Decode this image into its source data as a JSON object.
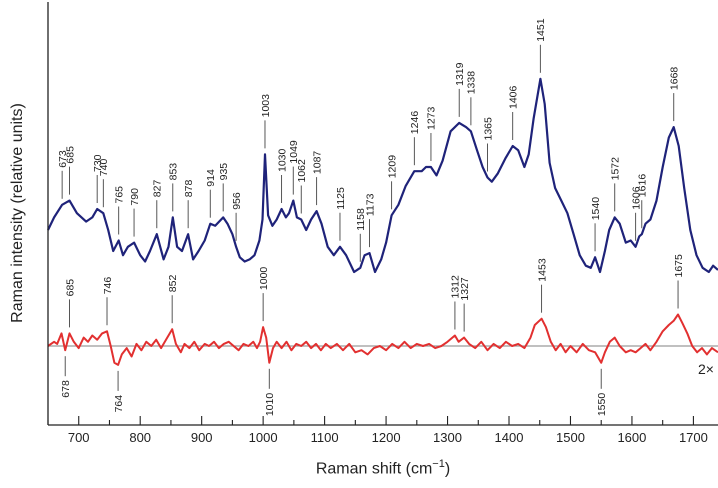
{
  "chart_data": {
    "type": "line",
    "title": "",
    "xlabel_main": "Raman shift (cm",
    "xlabel_sup": "−1",
    "xlabel_close": ")",
    "ylabel": "Raman intensity (relative units)",
    "xlim": [
      650,
      1740
    ],
    "xticks": [
      700,
      800,
      900,
      1000,
      1100,
      1200,
      1300,
      1400,
      1500,
      1600,
      1700
    ],
    "scale_annotation": "2×",
    "colors": {
      "upper": "#1f237a",
      "lower": "#e23030",
      "baseline": "#9a9a9a",
      "axis": "#222222",
      "leader": "#444444"
    },
    "series": [
      {
        "id": "upper",
        "points": [
          [
            650,
            0.0
          ],
          [
            660,
            0.06
          ],
          [
            673,
            0.12
          ],
          [
            685,
            0.14
          ],
          [
            697,
            0.08
          ],
          [
            712,
            0.04
          ],
          [
            722,
            0.06
          ],
          [
            730,
            0.1
          ],
          [
            740,
            0.08
          ],
          [
            748,
            0.0
          ],
          [
            756,
            -0.1
          ],
          [
            765,
            -0.05
          ],
          [
            772,
            -0.12
          ],
          [
            780,
            -0.08
          ],
          [
            790,
            -0.06
          ],
          [
            800,
            -0.12
          ],
          [
            808,
            -0.15
          ],
          [
            816,
            -0.1
          ],
          [
            827,
            -0.02
          ],
          [
            838,
            -0.14
          ],
          [
            846,
            -0.08
          ],
          [
            853,
            0.06
          ],
          [
            860,
            -0.08
          ],
          [
            868,
            -0.1
          ],
          [
            878,
            -0.02
          ],
          [
            886,
            -0.14
          ],
          [
            895,
            -0.1
          ],
          [
            905,
            -0.05
          ],
          [
            914,
            0.03
          ],
          [
            922,
            0.02
          ],
          [
            935,
            0.06
          ],
          [
            942,
            0.03
          ],
          [
            950,
            -0.02
          ],
          [
            956,
            -0.08
          ],
          [
            962,
            -0.13
          ],
          [
            970,
            -0.15
          ],
          [
            978,
            -0.14
          ],
          [
            986,
            -0.12
          ],
          [
            994,
            -0.05
          ],
          [
            999,
            0.05
          ],
          [
            1003,
            0.36
          ],
          [
            1008,
            0.07
          ],
          [
            1015,
            0.02
          ],
          [
            1022,
            0.05
          ],
          [
            1030,
            0.1
          ],
          [
            1037,
            0.06
          ],
          [
            1042,
            0.08
          ],
          [
            1049,
            0.14
          ],
          [
            1055,
            0.06
          ],
          [
            1062,
            0.05
          ],
          [
            1070,
            0.0
          ],
          [
            1078,
            0.05
          ],
          [
            1087,
            0.09
          ],
          [
            1095,
            0.03
          ],
          [
            1105,
            -0.08
          ],
          [
            1115,
            -0.12
          ],
          [
            1125,
            -0.08
          ],
          [
            1135,
            -0.12
          ],
          [
            1148,
            -0.2
          ],
          [
            1158,
            -0.18
          ],
          [
            1165,
            -0.12
          ],
          [
            1173,
            -0.11
          ],
          [
            1182,
            -0.2
          ],
          [
            1192,
            -0.14
          ],
          [
            1200,
            -0.06
          ],
          [
            1209,
            0.07
          ],
          [
            1220,
            0.12
          ],
          [
            1232,
            0.21
          ],
          [
            1246,
            0.28
          ],
          [
            1258,
            0.28
          ],
          [
            1265,
            0.3
          ],
          [
            1273,
            0.3
          ],
          [
            1282,
            0.26
          ],
          [
            1292,
            0.33
          ],
          [
            1305,
            0.47
          ],
          [
            1319,
            0.51
          ],
          [
            1330,
            0.49
          ],
          [
            1338,
            0.47
          ],
          [
            1348,
            0.38
          ],
          [
            1357,
            0.3
          ],
          [
            1365,
            0.25
          ],
          [
            1372,
            0.23
          ],
          [
            1382,
            0.27
          ],
          [
            1394,
            0.34
          ],
          [
            1406,
            0.4
          ],
          [
            1415,
            0.38
          ],
          [
            1425,
            0.3
          ],
          [
            1432,
            0.36
          ],
          [
            1440,
            0.53
          ],
          [
            1451,
            0.72
          ],
          [
            1458,
            0.6
          ],
          [
            1466,
            0.32
          ],
          [
            1475,
            0.2
          ],
          [
            1485,
            0.14
          ],
          [
            1495,
            0.08
          ],
          [
            1505,
            -0.02
          ],
          [
            1515,
            -0.12
          ],
          [
            1525,
            -0.17
          ],
          [
            1533,
            -0.18
          ],
          [
            1540,
            -0.13
          ],
          [
            1548,
            -0.2
          ],
          [
            1556,
            -0.1
          ],
          [
            1563,
            0.0
          ],
          [
            1572,
            0.06
          ],
          [
            1580,
            0.03
          ],
          [
            1590,
            -0.06
          ],
          [
            1598,
            -0.05
          ],
          [
            1606,
            -0.08
          ],
          [
            1612,
            -0.03
          ],
          [
            1616,
            -0.02
          ],
          [
            1622,
            0.03
          ],
          [
            1630,
            0.05
          ],
          [
            1640,
            0.14
          ],
          [
            1650,
            0.3
          ],
          [
            1660,
            0.44
          ],
          [
            1668,
            0.49
          ],
          [
            1676,
            0.4
          ],
          [
            1685,
            0.2
          ],
          [
            1695,
            0.0
          ],
          [
            1705,
            -0.12
          ],
          [
            1715,
            -0.18
          ],
          [
            1725,
            -0.2
          ],
          [
            1732,
            -0.17
          ],
          [
            1740,
            -0.19
          ]
        ]
      },
      {
        "id": "lower",
        "points": [
          [
            650,
            0.0
          ],
          [
            660,
            0.02
          ],
          [
            665,
            0.01
          ],
          [
            672,
            0.06
          ],
          [
            678,
            -0.02
          ],
          [
            685,
            0.06
          ],
          [
            692,
            0.02
          ],
          [
            700,
            -0.01
          ],
          [
            708,
            0.04
          ],
          [
            715,
            0.02
          ],
          [
            722,
            0.05
          ],
          [
            730,
            0.03
          ],
          [
            738,
            0.06
          ],
          [
            746,
            0.07
          ],
          [
            752,
            0.0
          ],
          [
            758,
            -0.08
          ],
          [
            764,
            -0.09
          ],
          [
            770,
            -0.04
          ],
          [
            778,
            -0.01
          ],
          [
            786,
            -0.05
          ],
          [
            794,
            0.01
          ],
          [
            802,
            -0.02
          ],
          [
            810,
            0.02
          ],
          [
            818,
            0.0
          ],
          [
            826,
            0.03
          ],
          [
            834,
            -0.01
          ],
          [
            842,
            0.03
          ],
          [
            852,
            0.08
          ],
          [
            858,
            0.01
          ],
          [
            866,
            -0.03
          ],
          [
            872,
            0.01
          ],
          [
            880,
            -0.01
          ],
          [
            888,
            0.02
          ],
          [
            896,
            -0.02
          ],
          [
            905,
            0.01
          ],
          [
            912,
            0.0
          ],
          [
            920,
            0.02
          ],
          [
            928,
            -0.01
          ],
          [
            936,
            0.01
          ],
          [
            944,
            0.02
          ],
          [
            952,
            0.0
          ],
          [
            960,
            -0.02
          ],
          [
            968,
            0.01
          ],
          [
            976,
            0.0
          ],
          [
            984,
            0.02
          ],
          [
            990,
            -0.01
          ],
          [
            995,
            0.02
          ],
          [
            1000,
            0.09
          ],
          [
            1005,
            0.04
          ],
          [
            1010,
            -0.08
          ],
          [
            1016,
            -0.01
          ],
          [
            1022,
            0.02
          ],
          [
            1030,
            -0.01
          ],
          [
            1038,
            0.02
          ],
          [
            1046,
            -0.02
          ],
          [
            1054,
            0.01
          ],
          [
            1062,
            0.0
          ],
          [
            1070,
            0.02
          ],
          [
            1078,
            -0.01
          ],
          [
            1086,
            0.01
          ],
          [
            1094,
            -0.02
          ],
          [
            1102,
            0.01
          ],
          [
            1110,
            -0.01
          ],
          [
            1120,
            0.01
          ],
          [
            1130,
            -0.02
          ],
          [
            1140,
            0.01
          ],
          [
            1150,
            -0.03
          ],
          [
            1160,
            -0.02
          ],
          [
            1170,
            -0.04
          ],
          [
            1180,
            -0.01
          ],
          [
            1190,
            0.0
          ],
          [
            1200,
            -0.02
          ],
          [
            1210,
            0.01
          ],
          [
            1220,
            -0.01
          ],
          [
            1230,
            0.02
          ],
          [
            1240,
            -0.01
          ],
          [
            1250,
            0.01
          ],
          [
            1260,
            0.0
          ],
          [
            1270,
            0.01
          ],
          [
            1280,
            -0.01
          ],
          [
            1290,
            0.0
          ],
          [
            1300,
            0.02
          ],
          [
            1312,
            0.05
          ],
          [
            1318,
            0.02
          ],
          [
            1327,
            0.04
          ],
          [
            1335,
            0.01
          ],
          [
            1345,
            -0.01
          ],
          [
            1355,
            0.02
          ],
          [
            1365,
            -0.02
          ],
          [
            1375,
            0.01
          ],
          [
            1385,
            -0.01
          ],
          [
            1395,
            0.02
          ],
          [
            1405,
            0.0
          ],
          [
            1415,
            0.01
          ],
          [
            1425,
            -0.01
          ],
          [
            1435,
            0.04
          ],
          [
            1442,
            0.1
          ],
          [
            1453,
            0.13
          ],
          [
            1460,
            0.09
          ],
          [
            1468,
            0.02
          ],
          [
            1476,
            -0.02
          ],
          [
            1484,
            0.01
          ],
          [
            1492,
            -0.03
          ],
          [
            1500,
            0.0
          ],
          [
            1510,
            -0.03
          ],
          [
            1520,
            0.01
          ],
          [
            1530,
            -0.02
          ],
          [
            1540,
            -0.03
          ],
          [
            1550,
            -0.08
          ],
          [
            1556,
            -0.03
          ],
          [
            1564,
            0.02
          ],
          [
            1572,
            0.04
          ],
          [
            1580,
            0.0
          ],
          [
            1590,
            -0.03
          ],
          [
            1598,
            -0.02
          ],
          [
            1606,
            -0.03
          ],
          [
            1614,
            -0.01
          ],
          [
            1622,
            0.01
          ],
          [
            1630,
            -0.02
          ],
          [
            1640,
            0.02
          ],
          [
            1650,
            0.07
          ],
          [
            1660,
            0.1
          ],
          [
            1668,
            0.12
          ],
          [
            1675,
            0.15
          ],
          [
            1682,
            0.11
          ],
          [
            1690,
            0.06
          ],
          [
            1698,
            0.0
          ],
          [
            1706,
            -0.03
          ],
          [
            1714,
            -0.01
          ],
          [
            1722,
            -0.04
          ],
          [
            1730,
            -0.01
          ],
          [
            1740,
            -0.03
          ]
        ]
      }
    ],
    "upper_labels": [
      673,
      685,
      730,
      740,
      765,
      790,
      827,
      853,
      878,
      914,
      935,
      956,
      1003,
      1030,
      1049,
      1062,
      1087,
      1125,
      1158,
      1173,
      1209,
      1246,
      1273,
      1319,
      1338,
      1365,
      1406,
      1451,
      1540,
      1572,
      1606,
      1616,
      1668
    ],
    "lower_labels_above": [
      685,
      746,
      852,
      1000,
      1312,
      1327,
      1453,
      1675
    ],
    "lower_labels_below": [
      678,
      764,
      1010,
      1550
    ]
  }
}
